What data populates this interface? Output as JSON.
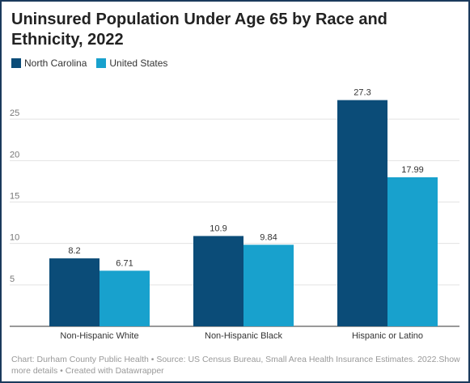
{
  "chart_data": {
    "type": "bar",
    "title": "Uninsured Population Under Age 65 by Race and Ethnicity, 2022",
    "categories": [
      "Non-Hispanic White",
      "Non-Hispanic Black",
      "Hispanic or Latino"
    ],
    "series": [
      {
        "name": "North Carolina",
        "color": "#0b4c78",
        "values": [
          8.2,
          10.9,
          27.3
        ]
      },
      {
        "name": "United States",
        "color": "#18a1cd",
        "values": [
          6.71,
          9.84,
          17.99
        ]
      }
    ],
    "data_labels": [
      [
        "8.2",
        "10.9",
        "27.3"
      ],
      [
        "6.71",
        "9.84",
        "17.99"
      ]
    ],
    "y_ticks": [
      5,
      10,
      15,
      20,
      25
    ],
    "ylim": [
      0,
      30
    ],
    "grid": true,
    "legend_position": "top-left",
    "xlabel": "",
    "ylabel": ""
  },
  "footer": {
    "text": "Chart: Durham County Public Health • Source: US Census Bureau, Small Area Health Insurance Estimates. 2022.Show more details • Created with Datawrapper"
  }
}
